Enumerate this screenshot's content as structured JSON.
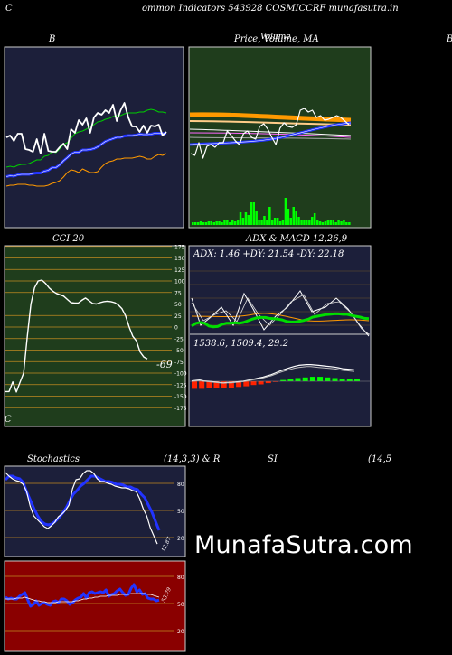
{
  "header": {
    "top_left": "C",
    "title": "ommon  Indicators 543928  COSMICCRF munafasutra.in",
    "bottom_left": "C"
  },
  "panels": {
    "bollinger": {
      "label": "B"
    },
    "price": {
      "label": "Price,  Volume,  MA",
      "overlay_label": "Volume",
      "right_edge_label": "B"
    },
    "cci": {
      "label": "CCI 20",
      "value_label": "-69"
    },
    "adx_macd": {
      "label": "ADX  & MACD 12,26,9",
      "adx_text": "ADX: 1.46   +DY: 21.54   -DY: 22.18",
      "macd_text": "1538.6,   1509.4,   29.2"
    },
    "stochastics": {
      "label": "Stochastics",
      "params": "(14,3,3) & R",
      "value_label": "12.87"
    },
    "rsi": {
      "label": "SI",
      "params": "(14,5",
      "value_label": "53.79"
    }
  },
  "watermark": "MunafaSutra.com",
  "colors": {
    "panel_navy": "#1c1f3a",
    "panel_green": "#1f3d1c",
    "panel_red": "#8a0000",
    "orange": "#ff9900",
    "blue": "#2233ff",
    "green_line": "#00cc00",
    "volume_green": "#00ff00"
  },
  "chart_data": [
    {
      "type": "line",
      "title": "B",
      "series": [
        {
          "values": [
            152,
            150,
            156,
            148,
            148,
            165,
            166,
            168,
            154,
            170,
            148,
            167,
            168,
            168,
            163,
            159,
            165,
            143,
            147,
            133,
            138,
            131,
            147,
            130,
            125,
            127,
            122,
            125,
            116,
            134,
            122,
            114,
            130,
            140,
            140,
            146,
            139,
            147,
            139,
            140,
            138,
            150,
            146
          ]
        },
        {
          "values": [
            185,
            184,
            185,
            183,
            182,
            182,
            181,
            179,
            177,
            177,
            173,
            172,
            168,
            169,
            165,
            160,
            158,
            153,
            148,
            146,
            145,
            143,
            140,
            138,
            135,
            134,
            132,
            131,
            129,
            128,
            128,
            126,
            125,
            125,
            125,
            124,
            124,
            122,
            121,
            122,
            124,
            124,
            125
          ]
        },
        {
          "values": [
            206,
            205,
            205,
            204,
            204,
            204,
            205,
            205,
            206,
            206,
            206,
            205,
            203,
            202,
            200,
            196,
            191,
            188,
            189,
            191,
            187,
            189,
            191,
            191,
            190,
            185,
            181,
            179,
            178,
            176,
            176,
            175,
            175,
            175,
            174,
            173,
            174,
            176,
            176,
            173,
            171,
            172,
            170
          ]
        }
      ]
    },
    {
      "type": "bar",
      "title": "Price,  Volume,  MA",
      "series": [
        {
          "values": [
            3,
            3,
            3,
            4,
            3,
            3,
            4,
            4,
            3,
            4,
            4,
            3,
            5,
            5,
            3,
            5,
            4,
            6,
            14,
            8,
            14,
            11,
            25,
            25,
            16,
            6,
            5,
            10,
            6,
            20,
            6,
            8,
            8,
            4,
            6,
            30,
            18,
            8,
            20,
            15,
            9,
            6,
            6,
            6,
            6,
            9,
            13,
            6,
            4,
            3,
            4,
            6,
            5,
            5,
            3,
            5,
            4,
            5,
            3,
            3
          ]
        }
      ]
    },
    {
      "type": "line",
      "title": "CCI 20",
      "ylim": [
        -175,
        175
      ],
      "yticks": [
        175,
        150,
        125,
        100,
        75,
        50,
        25,
        0,
        -25,
        -50,
        -75,
        -100,
        -125,
        -150,
        -175
      ],
      "series": [
        {
          "values": [
            -140,
            -140,
            -119,
            -141,
            -120,
            -100,
            -20,
            50,
            85,
            100,
            102,
            95,
            85,
            78,
            73,
            70,
            67,
            60,
            53,
            52,
            52,
            58,
            63,
            57,
            51,
            50,
            53,
            55,
            56,
            55,
            53,
            48,
            40,
            25,
            0,
            -20,
            -30,
            -54,
            -65,
            -69
          ]
        }
      ]
    },
    {
      "type": "line",
      "title": "ADX  & MACD 12,26,9",
      "series": [
        {
          "values": [
            38,
            45,
            47,
            45,
            38,
            36,
            37,
            42,
            45,
            45,
            46,
            45,
            47,
            51,
            55,
            58,
            59,
            59,
            57,
            56,
            55,
            53,
            49,
            48,
            48,
            50,
            52,
            55,
            60,
            62,
            64,
            66,
            67,
            68,
            68,
            67,
            67,
            64,
            62,
            60,
            57,
            56
          ]
        },
        {
          "values": [
            1,
            2,
            3,
            1,
            0,
            -1,
            -2,
            -3,
            -4,
            -3,
            -3,
            -2,
            -1,
            0,
            2,
            4,
            6,
            8,
            10,
            13,
            16,
            20,
            24,
            28,
            31,
            34,
            37,
            39,
            40,
            41,
            41,
            40,
            39,
            38,
            37,
            36,
            35,
            33,
            31,
            30,
            29,
            28
          ]
        },
        {
          "values": [
            -12,
            -12,
            -11,
            -11,
            -10,
            -10,
            -9,
            -8,
            -6,
            -5,
            -3,
            -1,
            2,
            4,
            5,
            6,
            7,
            7,
            6,
            5,
            4,
            4,
            3
          ]
        }
      ]
    },
    {
      "type": "line",
      "title": "Stochastics",
      "ylim": [
        0,
        100
      ],
      "yticks": [
        80,
        50,
        20
      ],
      "series": [
        {
          "values": [
            92,
            88,
            85,
            83,
            82,
            79,
            71,
            55,
            44,
            40,
            36,
            32,
            30,
            33,
            37,
            43,
            46,
            50,
            56,
            74,
            84,
            85,
            91,
            94,
            94,
            91,
            85,
            82,
            82,
            80,
            79,
            77,
            76,
            75,
            75,
            74,
            72,
            71,
            63,
            52,
            44,
            31,
            22,
            12.87
          ]
        },
        {
          "values": [
            84,
            88,
            88,
            86,
            85,
            81,
            70,
            61,
            52,
            44,
            38,
            35,
            34,
            35,
            38,
            42,
            47,
            53,
            61,
            68,
            72,
            77,
            80,
            84,
            88,
            88,
            86,
            84,
            82,
            82,
            81,
            79,
            79,
            78,
            76,
            76,
            74,
            73,
            68,
            64,
            56,
            48,
            38,
            28
          ]
        }
      ]
    },
    {
      "type": "line",
      "title": "SI",
      "ylim": [
        0,
        100
      ],
      "yticks": [
        80,
        50,
        20
      ],
      "series": [
        {
          "values": [
            57,
            55,
            56,
            55,
            55,
            58,
            60,
            62,
            54,
            47,
            49,
            53,
            48,
            50,
            51,
            49,
            48,
            52,
            53,
            51,
            55,
            55,
            53,
            49,
            51,
            54,
            56,
            57,
            61,
            56,
            62,
            63,
            61,
            62,
            63,
            62,
            65,
            58,
            60,
            61,
            64,
            66,
            62,
            59,
            60,
            67,
            71,
            63,
            65,
            60,
            61,
            56,
            55,
            55,
            53,
            53.79
          ]
        },
        {
          "values": [
            55,
            55,
            55,
            55,
            56,
            56,
            56,
            57,
            56,
            55,
            54,
            53,
            53,
            52,
            52,
            51,
            51,
            51,
            51,
            52,
            52,
            52,
            52,
            52,
            52,
            53,
            53,
            54,
            55,
            55,
            56,
            56,
            57,
            57,
            58,
            58,
            58,
            59,
            59,
            59,
            59,
            60,
            60,
            60,
            60,
            61,
            61,
            61,
            61,
            61,
            61,
            60,
            60,
            59,
            58,
            57
          ]
        }
      ]
    }
  ]
}
